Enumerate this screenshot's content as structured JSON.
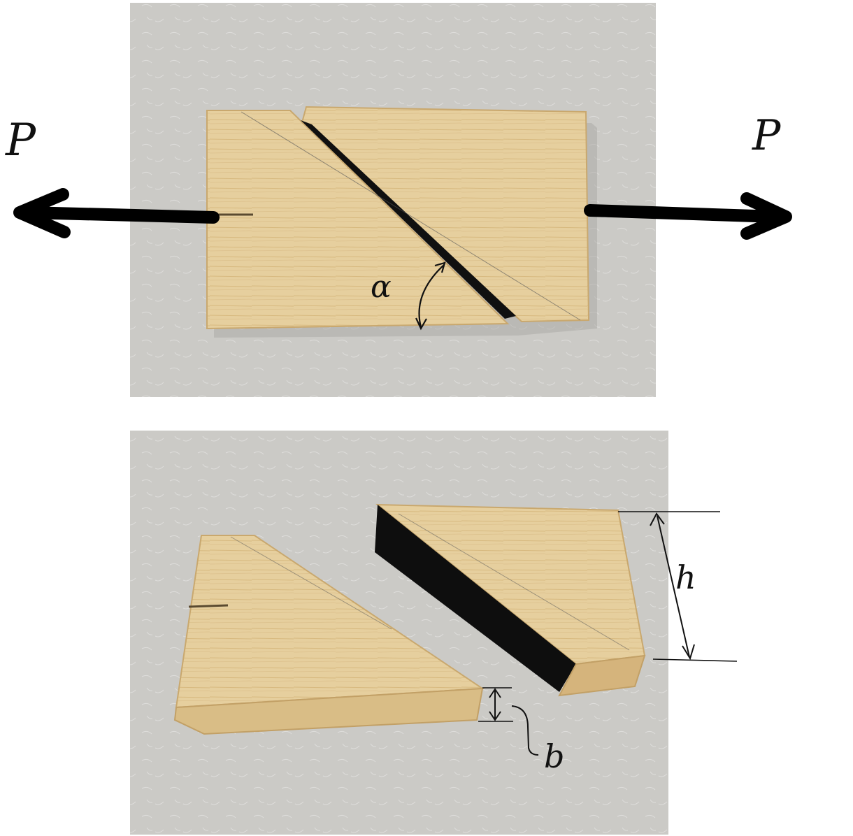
{
  "labels": {
    "force_left": "P",
    "force_right": "P",
    "angle": "α",
    "height": "h",
    "thickness": "b"
  },
  "colors": {
    "background": "#ffffff",
    "table": "#c9c8c4",
    "wood_light": "#e9d3a4",
    "wood_mid": "#dcc08a",
    "wood_edge": "#cfae74",
    "glue_joint": "#101010",
    "ink": "#111111"
  },
  "icons": {
    "force_arrow_left": "arrow-left-icon",
    "force_arrow_right": "arrow-right-icon",
    "angle_arc": "double-arrow-arc-icon",
    "dimension_arrow": "double-arrow-icon"
  }
}
